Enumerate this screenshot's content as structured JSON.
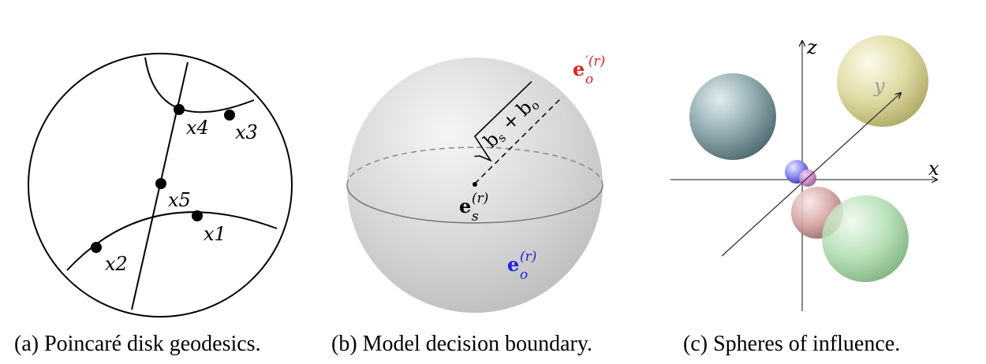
{
  "panel_a": {
    "caption": "(a) Poincaré disk geodesics.",
    "points": [
      "x4",
      "x3",
      "x5",
      "x1",
      "x2"
    ]
  },
  "panel_b": {
    "caption": "(b) Model decision boundary.",
    "center_label": {
      "base": "e",
      "sub": "s",
      "sup": "(r)"
    },
    "object_label": {
      "base": "e",
      "sub": "o",
      "sup": "(r)"
    },
    "object_prime_label": {
      "base": "e",
      "sub": "o",
      "sup": "′(r)"
    },
    "radius_label": "√(b_s + b_o)",
    "radius_parts": {
      "b1": "b",
      "s1": "s",
      "plus": "+",
      "b2": "b",
      "s2": "o"
    },
    "colors": {
      "object": "#2222dd",
      "object_prime": "#dd2222"
    }
  },
  "panel_c": {
    "caption": "(c) Spheres of influence.",
    "axes": {
      "x": "x",
      "y": "y",
      "z": "z"
    },
    "sphere_colors": [
      "#5f7f86",
      "#c8c27a",
      "#6e6ee0",
      "#c06ec0",
      "#c08a8a",
      "#8ac48a"
    ]
  }
}
